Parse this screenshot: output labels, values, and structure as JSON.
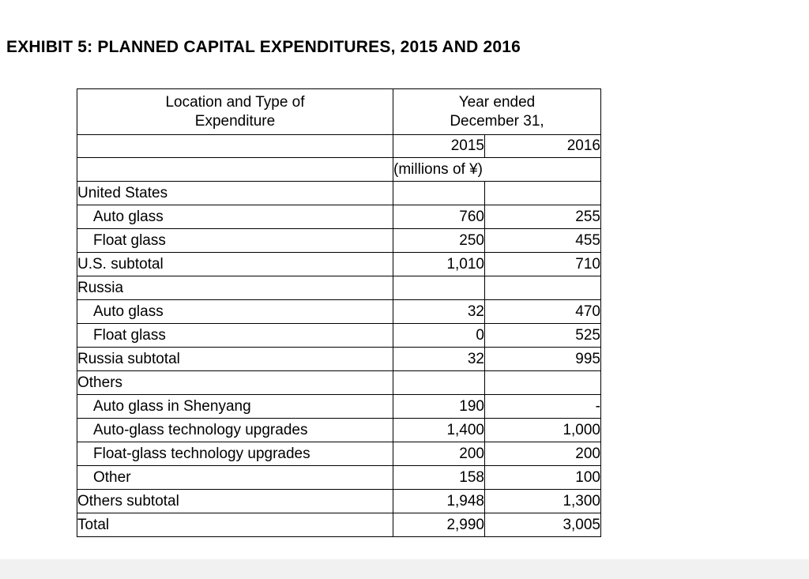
{
  "page": {
    "title": "EXHIBIT 5: PLANNED CAPITAL EXPENDITURES, 2015 AND 2016"
  },
  "table": {
    "header": {
      "col1_line1": "Location and Type of",
      "col1_line2": "Expenditure",
      "span_line1": "Year ended",
      "span_line2": "December 31,",
      "year_2015": "2015",
      "year_2016": "2016",
      "units": "(millions of ¥)"
    },
    "rows": [
      {
        "label": "United States",
        "bold": true,
        "indent": false,
        "v2015": "",
        "v2016": ""
      },
      {
        "label": "Auto glass",
        "bold": false,
        "indent": true,
        "v2015": "760",
        "v2016": "255"
      },
      {
        "label": "Float glass",
        "bold": false,
        "indent": true,
        "v2015": "250",
        "v2016": "455"
      },
      {
        "label": "U.S. subtotal",
        "bold": false,
        "indent": false,
        "v2015": "1,010",
        "v2016": "710"
      },
      {
        "label": "Russia",
        "bold": true,
        "indent": false,
        "v2015": "",
        "v2016": ""
      },
      {
        "label": "Auto glass",
        "bold": false,
        "indent": true,
        "v2015": "32",
        "v2016": "470"
      },
      {
        "label": "Float glass",
        "bold": false,
        "indent": true,
        "v2015": "0",
        "v2016": "525"
      },
      {
        "label": "Russia subtotal",
        "bold": false,
        "indent": false,
        "v2015": "32",
        "v2016": "995"
      },
      {
        "label": "Others",
        "bold": true,
        "indent": false,
        "v2015": "",
        "v2016": ""
      },
      {
        "label": "Auto glass in Shenyang",
        "bold": false,
        "indent": true,
        "v2015": "190",
        "v2016": "-"
      },
      {
        "label": "Auto-glass technology upgrades",
        "bold": false,
        "indent": true,
        "v2015": "1,400",
        "v2016": "1,000"
      },
      {
        "label": "Float-glass technology upgrades",
        "bold": false,
        "indent": true,
        "v2015": "200",
        "v2016": "200"
      },
      {
        "label": "Other",
        "bold": false,
        "indent": true,
        "v2015": "158",
        "v2016": "100"
      },
      {
        "label": "Others subtotal",
        "bold": false,
        "indent": false,
        "v2015": "1,948",
        "v2016": "1,300"
      },
      {
        "label": "Total",
        "bold": true,
        "indent": false,
        "v2015": "2,990",
        "v2016": "3,005"
      }
    ]
  }
}
